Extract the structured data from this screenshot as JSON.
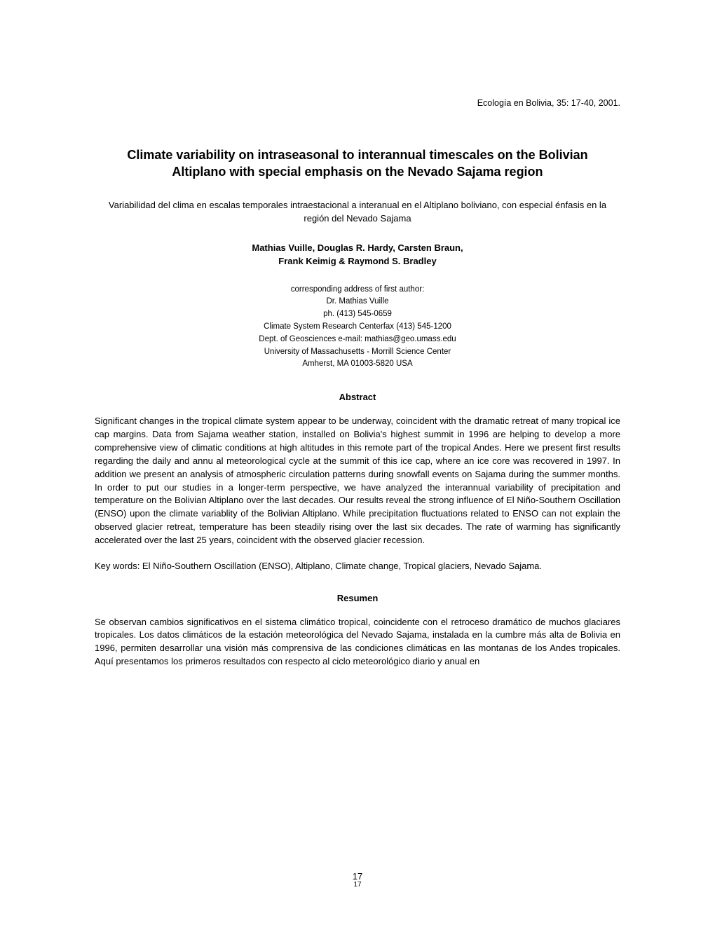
{
  "journal_citation": "Ecología en Bolivia, 35: 17-40, 2001.",
  "title": "Climate variability on intraseasonal to interannual timescales on the Bolivian Altiplano with special emphasis on the Nevado Sajama region",
  "subtitle": "Variabilidad del clima en escalas temporales intraestacional a interanual en el Altiplano boliviano, con especial énfasis en la región del Nevado Sajama",
  "authors_line1": "Mathias Vuille, Douglas R. Hardy, Carsten Braun,",
  "authors_line2": "Frank Keimig & Raymond S. Bradley",
  "address": {
    "line1": "corresponding address of first author:",
    "line2": "Dr. Mathias Vuille",
    "line3": "ph. (413) 545-0659",
    "line4": "Climate System Research Centerfax (413) 545-1200",
    "line5": "Dept. of Geosciences e-mail: mathias@geo.umass.edu",
    "line6": "University of Massachusetts - Morrill Science Center",
    "line7": "Amherst, MA 01003-5820 USA"
  },
  "abstract_heading": "Abstract",
  "abstract_text": "Significant changes in the tropical climate system appear to be underway, coincident with the dramatic retreat of many tropical ice cap margins. Data from Sajama weather station, installed on Bolivia's highest summit in 1996 are helping to develop a more comprehensive view of climatic conditions at high altitudes in this remote part of the tropical Andes. Here we present first results regarding the daily and annu al meteorological cycle at the summit of this ice cap, where an ice core was recovered in 1997. In addition we present an analysis of atmospheric circulation patterns during snowfall events on Sajama during the summer months. In order to put our studies in a longer-term perspective, we have analyzed the interannual variability of precipitation and temperature on the Bolivian Altiplano over the last decades. Our results reveal the strong influence of El Niño-Southern Oscillation (ENSO) upon the climate variablity of the Bolivian Altiplano. While precipitation fluctuations related to ENSO can not explain the observed glacier retreat, temperature has been steadily rising over the last six decades. The rate of warming has significantly accelerated over the last 25 years, coincident with the observed glacier recession.",
  "keywords_text": "Key words:  El Niño-Southern Oscillation (ENSO), Altiplano, Climate change, Tropical glaciers, Nevado Sajama.",
  "resumen_heading": "Resumen",
  "resumen_text": "Se observan cambios significativos en el sistema climático tropical, coincidente con el retroceso dramático de muchos glaciares tropicales. Los datos climáticos de la estación meteorológica del Nevado Sajama, instalada en la cumbre más alta de Bolivia en 1996, permiten desarrollar una visión  más comprensiva de las condiciones climáticas en las montanas de los Andes tropicales. Aquí presentamos los primeros resultados con respecto al ciclo meteorológico diario y anual en",
  "page_number_top": "17",
  "page_number_bottom": "17"
}
